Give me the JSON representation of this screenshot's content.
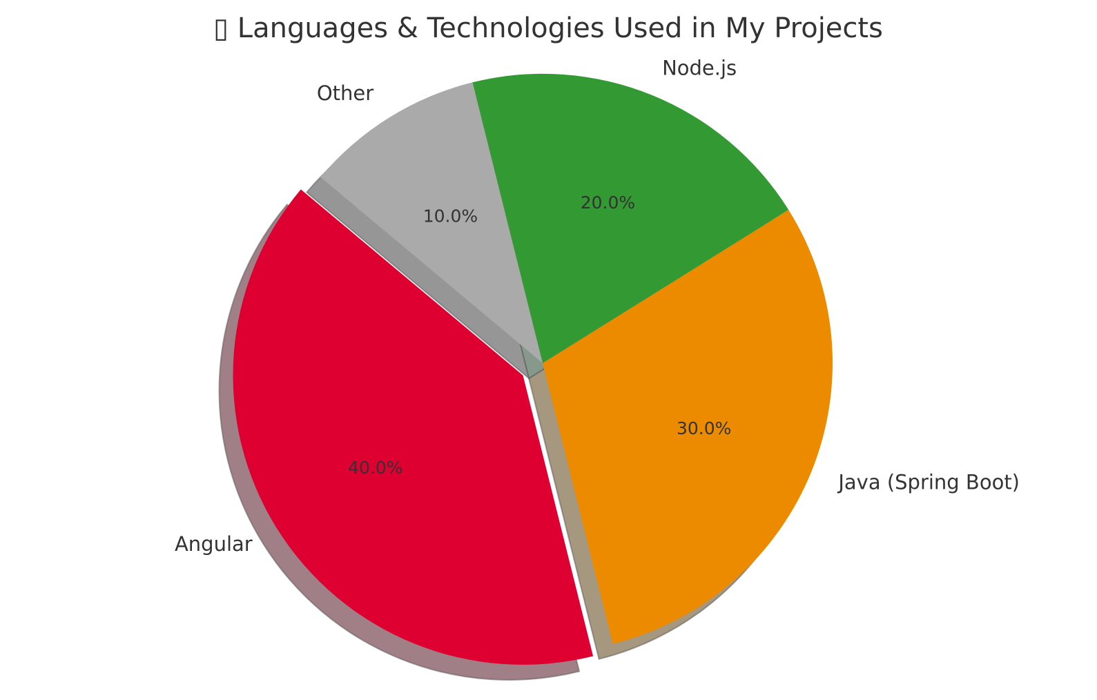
{
  "chart_data": {
    "type": "pie",
    "title": "▯ Languages & Technologies Used in My Projects",
    "start_angle_deg": 140,
    "direction": "counterclockwise",
    "shadow": true,
    "slices": [
      {
        "label": "Angular",
        "value": 40,
        "pct_label": "40.0%",
        "color": "#dd0031",
        "shadow_color": "#a17f86",
        "exploded": true
      },
      {
        "label": "Java (Spring Boot)",
        "value": 30,
        "pct_label": "30.0%",
        "color": "#ed8b00",
        "shadow_color": "#a6977f",
        "exploded": false
      },
      {
        "label": "Node.js",
        "value": 20,
        "pct_label": "20.0%",
        "color": "#339933",
        "shadow_color": "#86998a",
        "exploded": false
      },
      {
        "label": "Other",
        "value": 10,
        "pct_label": "10.0%",
        "color": "#aaaaaa",
        "shadow_color": "#969696",
        "exploded": false
      }
    ]
  }
}
